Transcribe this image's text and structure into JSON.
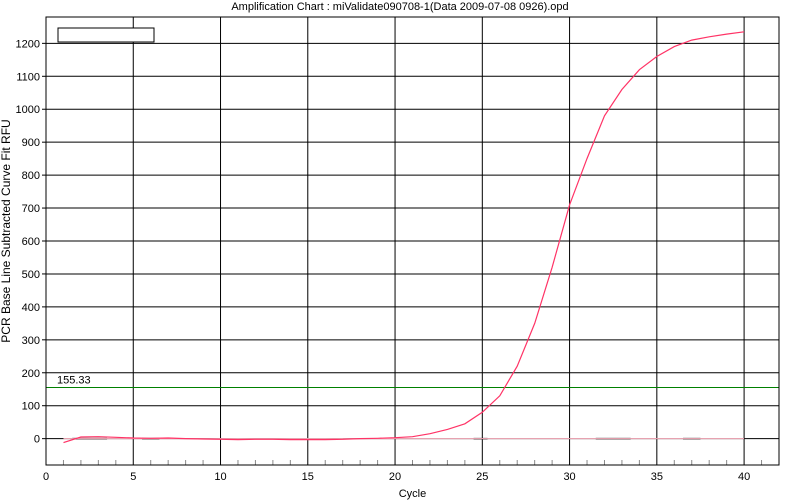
{
  "chart_data": {
    "type": "line",
    "title": "Amplification Chart : miValidate090708-1(Data 2009-07-08 0926).opd",
    "xlabel": "Cycle",
    "ylabel": "PCR Base Line Subtracted Curve Fit RFU",
    "xlim": [
      0,
      42
    ],
    "ylim": [
      -80,
      1280
    ],
    "x_ticks": [
      0,
      5,
      10,
      15,
      20,
      25,
      30,
      35,
      40
    ],
    "y_ticks": [
      0,
      100,
      200,
      300,
      400,
      500,
      600,
      700,
      800,
      900,
      1000,
      1100,
      1200
    ],
    "grid": true,
    "legend": "top-left (empty box)",
    "threshold": {
      "value": 155.33,
      "label": "155.33",
      "color": "#008000"
    },
    "series": [
      {
        "color": "#ff3366",
        "x": [
          1,
          2,
          3,
          4,
          5,
          6,
          7,
          8,
          9,
          10,
          11,
          12,
          13,
          14,
          15,
          16,
          17,
          18,
          19,
          20,
          21,
          22,
          23,
          24,
          25,
          26,
          27,
          28,
          29,
          30,
          31,
          32,
          33,
          34,
          35,
          36,
          37,
          38,
          39,
          40
        ],
        "values": [
          -12,
          5,
          6,
          4,
          2,
          1,
          2,
          0,
          -1,
          -2,
          -3,
          -2,
          -2,
          -3,
          -3,
          -3,
          -2,
          0,
          1,
          3,
          6,
          15,
          28,
          45,
          80,
          130,
          220,
          350,
          520,
          710,
          850,
          980,
          1060,
          1120,
          1160,
          1190,
          1210,
          1220,
          1228,
          1235
        ]
      }
    ],
    "flat_series": [
      {
        "color": "#000000",
        "x_start": 1.5,
        "x_end": 3.5,
        "value": 0
      },
      {
        "color": "#000000",
        "x_start": 5.5,
        "x_end": 6.5,
        "value": 0
      },
      {
        "color": "#000000",
        "x_start": 24.5,
        "x_end": 25.3,
        "value": 0
      },
      {
        "color": "#000000",
        "x_start": 31.5,
        "x_end": 33.5,
        "value": 0
      },
      {
        "color": "#000000",
        "x_start": 36.5,
        "x_end": 37.5,
        "value": 0
      }
    ]
  }
}
